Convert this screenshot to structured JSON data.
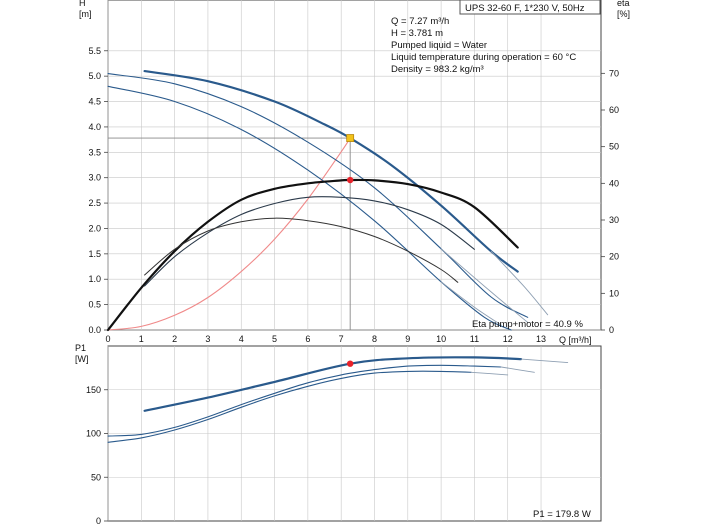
{
  "title_box": "UPS 32-60 F, 1*230 V, 50Hz",
  "info": [
    "Q = 7.27 m³/h",
    "H = 3.781 m",
    "Pumped liquid = Water",
    "Liquid temperature during operation = 60 °C",
    "Density = 983.2 kg/m³"
  ],
  "eta_annotation": "Eta pump+motor = 40.9 %",
  "p1_annotation": "P1 = 179.8 W",
  "colors": {
    "blue": "#2a5a8c",
    "black": "#111111",
    "red": "#e8222a",
    "pink": "#f08a8a",
    "yellow": "#f2c21a",
    "grid": "#c8c8c8"
  },
  "chart_data": [
    {
      "type": "line",
      "name": "head-curve",
      "ylabel": "H",
      "yunit": "[m]",
      "y2label": "eta",
      "y2unit": "[%]",
      "xlabel": "Q [m³/h]",
      "xlim": [
        0,
        14.8
      ],
      "ylim": [
        0,
        6.5
      ],
      "y2lim": [
        0,
        90
      ],
      "xticks": [
        0,
        1,
        2,
        3,
        4,
        5,
        6,
        7,
        8,
        9,
        10,
        11,
        12,
        13
      ],
      "yticks": [
        0.0,
        0.5,
        1.0,
        1.5,
        2.0,
        2.5,
        3.0,
        3.5,
        4.0,
        4.5,
        5.0,
        5.5
      ],
      "y2ticks": [
        0,
        10,
        20,
        30,
        40,
        50,
        60,
        70
      ],
      "grid": true,
      "head_series": [
        {
          "kind": "bold",
          "x": [
            1.1,
            3,
            5,
            6.5,
            7.27,
            8.5,
            10,
            11.5,
            12.3
          ],
          "y": [
            5.1,
            4.9,
            4.5,
            4.05,
            3.78,
            3.25,
            2.45,
            1.55,
            1.15
          ]
        },
        {
          "kind": "thin",
          "x": [
            0,
            2,
            4,
            6,
            8,
            10,
            11.5,
            12.6
          ],
          "y": [
            5.05,
            4.85,
            4.4,
            3.7,
            2.8,
            1.6,
            0.65,
            0.25
          ]
        },
        {
          "kind": "thin",
          "x": [
            0,
            2,
            4,
            6,
            8,
            10,
            11.3,
            12.1
          ],
          "y": [
            4.8,
            4.5,
            3.95,
            3.15,
            2.15,
            0.95,
            0.25,
            0.0
          ]
        },
        {
          "kind": "fade",
          "x": [
            11.5,
            12.5,
            13.2
          ],
          "y": [
            1.55,
            0.85,
            0.3
          ]
        },
        {
          "kind": "fade",
          "x": [
            10,
            11.5,
            12.6
          ],
          "y": [
            1.6,
            0.75,
            0.15
          ]
        },
        {
          "kind": "fade",
          "x": [
            10,
            11,
            11.8
          ],
          "y": [
            0.95,
            0.45,
            0.1
          ]
        }
      ],
      "eta_series": [
        {
          "kind": "bold-black",
          "x": [
            0,
            1,
            2,
            3,
            4,
            5,
            6,
            7,
            7.27,
            8,
            9,
            10,
            11,
            12.3
          ],
          "y": [
            0,
            11.5,
            21.5,
            29.5,
            35.5,
            38.5,
            40.0,
            40.8,
            40.9,
            40.8,
            39.8,
            37.5,
            33.5,
            22.5
          ]
        },
        {
          "kind": "dark-blue",
          "x": [
            1.1,
            2,
            3,
            4,
            5,
            6,
            7,
            8,
            9,
            10,
            11
          ],
          "y": [
            12,
            20,
            26.5,
            31.5,
            34.5,
            36.2,
            36.2,
            35.2,
            32.8,
            28.8,
            22
          ]
        },
        {
          "kind": "dark",
          "x": [
            1.1,
            2,
            3,
            4,
            5,
            6,
            7,
            8,
            9,
            10,
            10.5
          ],
          "y": [
            15,
            22,
            27,
            29.5,
            30.5,
            29.8,
            28.2,
            25.5,
            21.5,
            16.5,
            13
          ]
        }
      ],
      "system_curve": {
        "x": [
          0,
          1,
          2,
          3,
          4,
          5,
          6,
          7,
          7.27
        ],
        "y": [
          0,
          0.07,
          0.29,
          0.64,
          1.15,
          1.79,
          2.58,
          3.51,
          3.781
        ]
      },
      "duty_point": {
        "x": 7.27,
        "y": 3.781
      },
      "eta_point": {
        "x": 7.27,
        "y": 40.9
      }
    },
    {
      "type": "line",
      "name": "power-curve",
      "ylabel": "P1",
      "yunit": "[W]",
      "xlim": [
        0,
        14.8
      ],
      "ylim": [
        0,
        200
      ],
      "yticks": [
        0,
        50,
        100,
        150
      ],
      "grid": true,
      "series": [
        {
          "kind": "bold",
          "x": [
            1.1,
            3,
            5,
            7.27,
            9,
            11,
            12.4
          ],
          "y": [
            126,
            141,
            159,
            179.8,
            186,
            187,
            185
          ]
        },
        {
          "kind": "thin",
          "x": [
            0,
            1,
            2,
            3,
            4,
            5,
            6,
            7,
            8,
            9,
            10,
            11,
            11.8
          ],
          "y": [
            97,
            99,
            107,
            119,
            133,
            146,
            158,
            167,
            173,
            177,
            178,
            177,
            176
          ]
        },
        {
          "kind": "thin",
          "x": [
            0,
            1,
            2,
            3,
            4,
            5,
            6,
            7,
            8,
            9,
            10,
            10.9
          ],
          "y": [
            90,
            95,
            104,
            116,
            130,
            143,
            154,
            163,
            169,
            171,
            171,
            170
          ]
        },
        {
          "kind": "fade",
          "x": [
            12.4,
            13.8
          ],
          "y": [
            185,
            181
          ]
        },
        {
          "kind": "fade",
          "x": [
            11.8,
            12.8
          ],
          "y": [
            176,
            170
          ]
        },
        {
          "kind": "fade",
          "x": [
            10.9,
            12.0
          ],
          "y": [
            170,
            167
          ]
        }
      ],
      "point": {
        "x": 7.27,
        "y": 179.8
      }
    }
  ]
}
